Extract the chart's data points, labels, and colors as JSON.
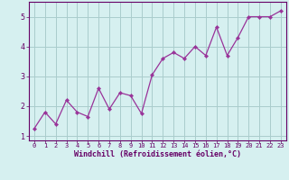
{
  "x": [
    0,
    1,
    2,
    3,
    4,
    5,
    6,
    7,
    8,
    9,
    10,
    11,
    12,
    13,
    14,
    15,
    16,
    17,
    18,
    19,
    20,
    21,
    22,
    23
  ],
  "y": [
    1.25,
    1.8,
    1.4,
    2.2,
    1.8,
    1.65,
    2.6,
    1.9,
    2.45,
    2.35,
    1.75,
    3.05,
    3.6,
    3.8,
    3.6,
    4.0,
    3.7,
    4.65,
    3.7,
    4.3,
    5.0,
    5.0,
    5.0,
    5.2
  ],
  "line_color": "#993399",
  "marker": "D",
  "marker_size": 2.2,
  "bg_color": "#d6f0f0",
  "grid_color": "#aacccc",
  "xlabel": "Windchill (Refroidissement éolien,°C)",
  "xlabel_color": "#660066",
  "tick_color": "#660066",
  "ylim": [
    0.85,
    5.5
  ],
  "xlim": [
    -0.5,
    23.5
  ],
  "yticks": [
    1,
    2,
    3,
    4,
    5
  ],
  "xticks": [
    0,
    1,
    2,
    3,
    4,
    5,
    6,
    7,
    8,
    9,
    10,
    11,
    12,
    13,
    14,
    15,
    16,
    17,
    18,
    19,
    20,
    21,
    22,
    23
  ],
  "tick_fontsize": 5.0,
  "ytick_fontsize": 6.0,
  "xlabel_fontsize": 6.0
}
